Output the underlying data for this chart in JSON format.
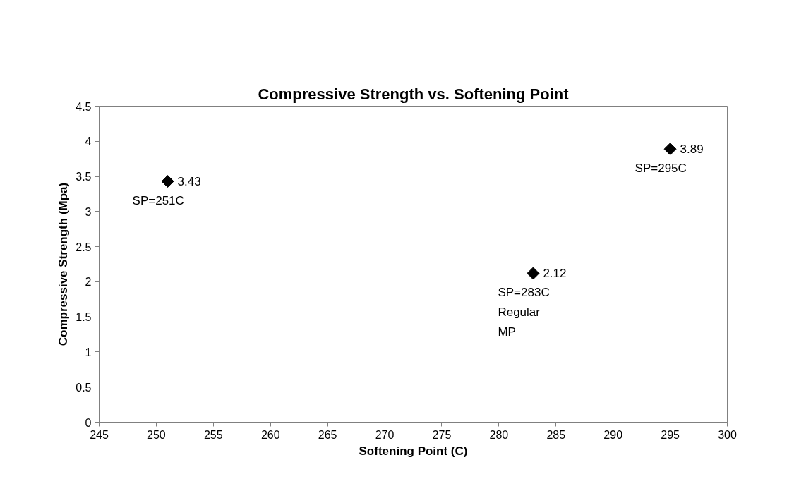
{
  "chart_data": {
    "type": "scatter",
    "title": "Compressive Strength vs. Softening Point",
    "xlabel": "Softening Point (C)",
    "ylabel": "Compressive Strength (Mpa)",
    "x": [
      251,
      283,
      295
    ],
    "series": [
      {
        "color": "#000000",
        "values": [
          3.43,
          2.12,
          3.89
        ]
      }
    ],
    "data_labels": true,
    "marker": "diamond",
    "grid": false,
    "xlim": [
      245,
      300
    ],
    "xticks": [
      245,
      250,
      255,
      260,
      265,
      270,
      275,
      280,
      285,
      290,
      295,
      300
    ],
    "ylim": [
      0,
      4.5
    ],
    "yticks": [
      0,
      0.5,
      1,
      1.5,
      2,
      2.5,
      3,
      3.5,
      4,
      4.5
    ],
    "annotations": [
      {
        "text": "SP=251C",
        "x": 251,
        "y": 3.43
      },
      {
        "text": "SP=283C\nRegular\nMP",
        "x": 283,
        "y": 2.12
      },
      {
        "text": "SP=295C",
        "x": 295,
        "y": 3.89
      }
    ]
  }
}
